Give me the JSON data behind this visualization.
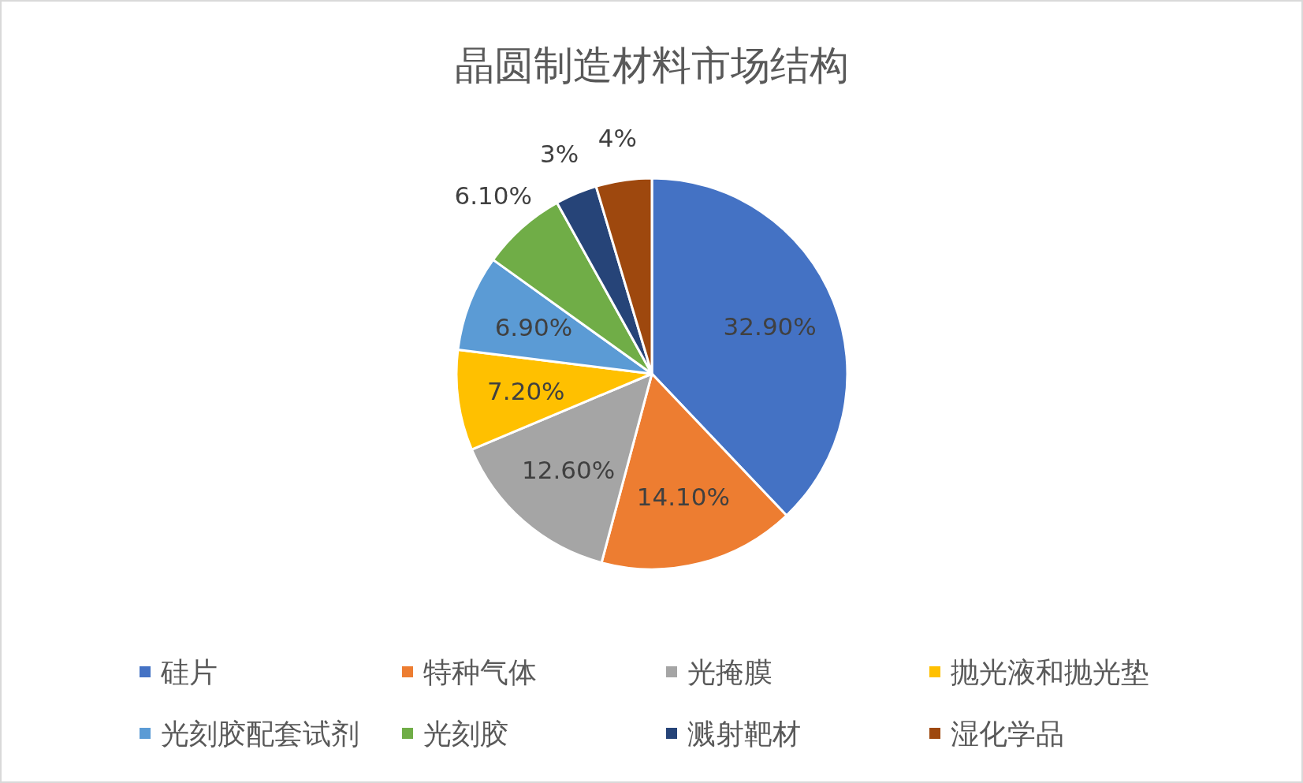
{
  "chart_data": {
    "type": "pie",
    "title": "晶圆制造材料市场结构",
    "categories": [
      "硅片",
      "特种气体",
      "光掩膜",
      "抛光液和抛光垫",
      "光刻胶配套试剂",
      "光刻胶",
      "溅射靶材",
      "湿化学品"
    ],
    "values": [
      32.9,
      14.1,
      12.6,
      7.2,
      6.9,
      6.1,
      3,
      4
    ],
    "value_labels": [
      "32.90%",
      "14.10%",
      "12.60%",
      "7.20%",
      "6.90%",
      "6.10%",
      "3%",
      "4%"
    ],
    "colors": [
      "#4472c4",
      "#ed7d31",
      "#a5a5a5",
      "#ffc000",
      "#5b9bd5",
      "#70ad47",
      "#264478",
      "#9e480e"
    ],
    "legend": "bottom"
  }
}
